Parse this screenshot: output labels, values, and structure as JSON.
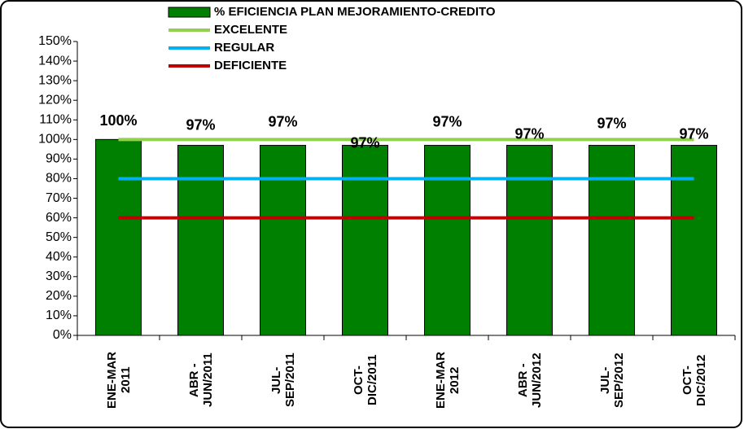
{
  "chart_data": {
    "type": "bar",
    "categories": [
      "ENE-MAR 2011",
      "ABR - JUN/2011",
      "JUL-SEP/2011",
      "OCT-DIC/2011",
      "ENE-MAR 2012",
      "ABR - JUN/2012",
      "JUL-SEP/2012",
      "OCT-DIC/2012"
    ],
    "series": [
      {
        "name": "% EFICIENCIA PLAN MEJORAMIENTO-CREDITO",
        "color": "#008000",
        "type": "bar",
        "values": [
          100,
          97,
          97,
          97,
          97,
          97,
          97,
          97
        ],
        "value_labels": [
          "100%",
          "97%",
          "97%",
          "97%",
          "97%",
          "97%",
          "97%",
          "97%"
        ]
      },
      {
        "name": "EXCELENTE",
        "color": "#92d050",
        "type": "line",
        "values": [
          100,
          100,
          100,
          100,
          100,
          100,
          100,
          100
        ]
      },
      {
        "name": "REGULAR",
        "color": "#00b0f0",
        "type": "line",
        "values": [
          80,
          80,
          80,
          80,
          80,
          80,
          80,
          80
        ]
      },
      {
        "name": "DEFICIENTE",
        "color": "#c00000",
        "type": "line",
        "values": [
          60,
          60,
          60,
          60,
          60,
          60,
          60,
          60
        ]
      }
    ],
    "ylim": [
      0,
      150
    ],
    "yticks": [
      {
        "value": 0,
        "label": "0%"
      },
      {
        "value": 10,
        "label": "10%"
      },
      {
        "value": 20,
        "label": "20%"
      },
      {
        "value": 30,
        "label": "30%"
      },
      {
        "value": 40,
        "label": "40%"
      },
      {
        "value": 50,
        "label": "50%"
      },
      {
        "value": 60,
        "label": "60%"
      },
      {
        "value": 70,
        "label": "70%"
      },
      {
        "value": 80,
        "label": "80%"
      },
      {
        "value": 90,
        "label": "90%"
      },
      {
        "value": 100,
        "label": "100%"
      },
      {
        "value": 110,
        "label": "110%"
      },
      {
        "value": 120,
        "label": "120%"
      },
      {
        "value": 130,
        "label": "130%"
      },
      {
        "value": 140,
        "label": "140%"
      },
      {
        "value": 150,
        "label": "150%"
      }
    ],
    "legend": "top"
  }
}
